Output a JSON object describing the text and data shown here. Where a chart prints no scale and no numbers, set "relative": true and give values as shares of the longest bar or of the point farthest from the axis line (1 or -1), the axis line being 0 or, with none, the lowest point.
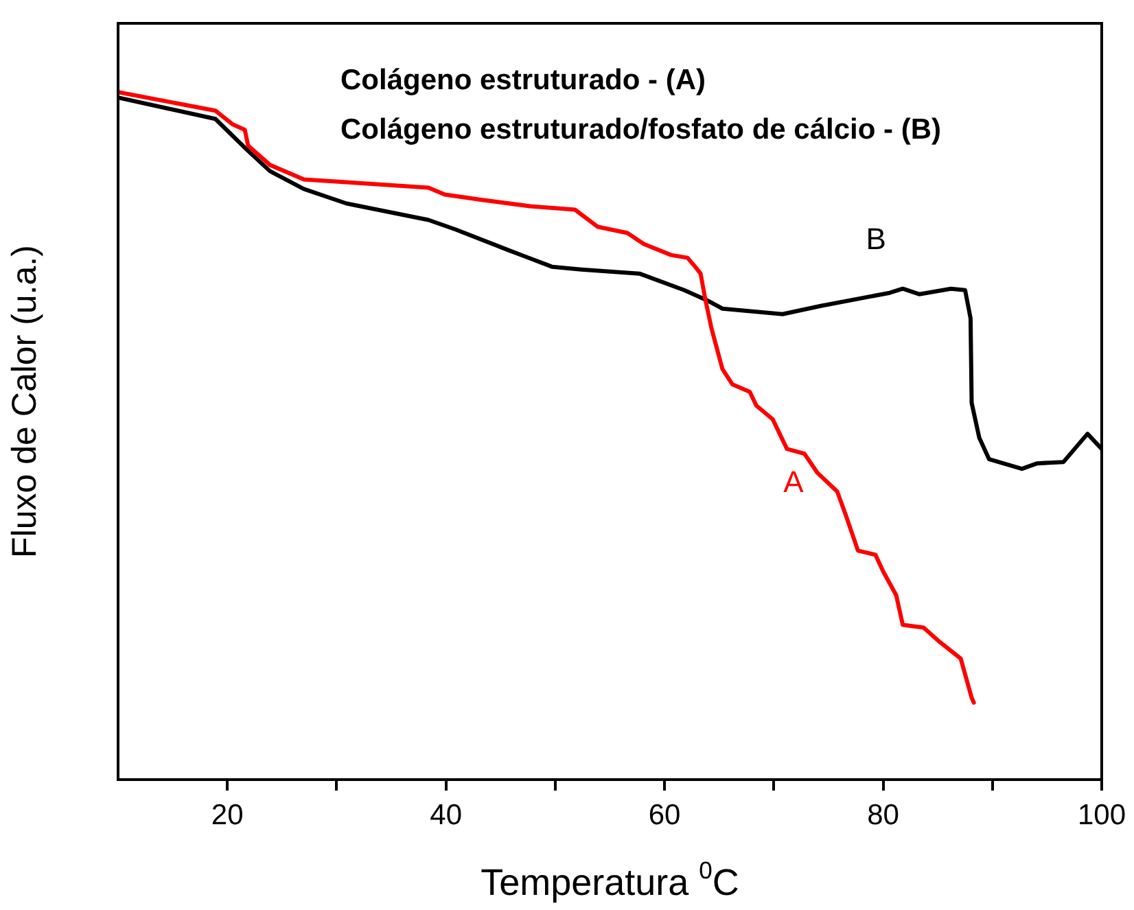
{
  "chart_data": {
    "type": "line",
    "relative": true,
    "xlabel": "Temperatura $^{0}$C",
    "ylabel": "Fluxo de Calor (u.a.)",
    "annotations": [
      "Colágeno estruturado - (A)",
      "Colágeno estruturado/fosfato de cálcio - (B)"
    ],
    "xlim": [
      10,
      100
    ],
    "xticks": [
      20,
      {
        "value": 30,
        "label": null
      },
      40,
      {
        "value": 50,
        "label": null
      },
      60,
      {
        "value": 70,
        "label": null
      },
      80,
      {
        "value": 90,
        "label": null
      },
      100
    ],
    "grid": false,
    "legend": false,
    "marker": "none",
    "line_style": "solid",
    "series": [
      {
        "name": "A",
        "color": "#ff0000",
        "x": [
          10,
          18.9,
          20.5,
          21.6,
          21.9,
          23.9,
          27.0,
          30.9,
          38.4,
          39.9,
          43.4,
          47.7,
          51.8,
          53.9,
          56.6,
          58.1,
          60.6,
          62.1,
          62.8,
          63.3,
          63.7,
          64.3,
          65.3,
          66.2,
          67.8,
          68.4,
          69.9,
          71.2,
          72.8,
          74.0,
          75.8,
          76.6,
          77.7,
          79.3,
          80.0,
          81.2,
          81.8,
          83.7,
          85.2,
          87.1,
          88.1,
          88.3
        ],
        "values": [
          1.0,
          0.973,
          0.953,
          0.945,
          0.922,
          0.894,
          0.873,
          0.869,
          0.861,
          0.851,
          0.843,
          0.834,
          0.829,
          0.804,
          0.795,
          0.779,
          0.763,
          0.759,
          0.746,
          0.736,
          0.701,
          0.656,
          0.597,
          0.575,
          0.564,
          0.544,
          0.524,
          0.481,
          0.474,
          0.446,
          0.419,
          0.384,
          0.333,
          0.327,
          0.303,
          0.268,
          0.225,
          0.221,
          0.2,
          0.176,
          0.119,
          0.112
        ]
      },
      {
        "name": "B",
        "color": "#000000",
        "x": [
          10,
          18.9,
          21.8,
          23.9,
          27.0,
          30.9,
          38.4,
          40.9,
          45.9,
          49.7,
          52.4,
          57.7,
          61.8,
          63.9,
          65.3,
          70.8,
          74.3,
          80.6,
          81.8,
          83.3,
          86.2,
          87.5,
          88.0,
          88.1,
          88.8,
          89.7,
          92.7,
          94.1,
          96.5,
          98.7,
          100.0
        ],
        "values": [
          0.992,
          0.961,
          0.916,
          0.885,
          0.859,
          0.838,
          0.814,
          0.8,
          0.769,
          0.746,
          0.742,
          0.736,
          0.712,
          0.697,
          0.685,
          0.677,
          0.689,
          0.708,
          0.714,
          0.706,
          0.714,
          0.712,
          0.671,
          0.548,
          0.497,
          0.466,
          0.452,
          0.46,
          0.462,
          0.503,
          0.481
        ]
      }
    ]
  }
}
